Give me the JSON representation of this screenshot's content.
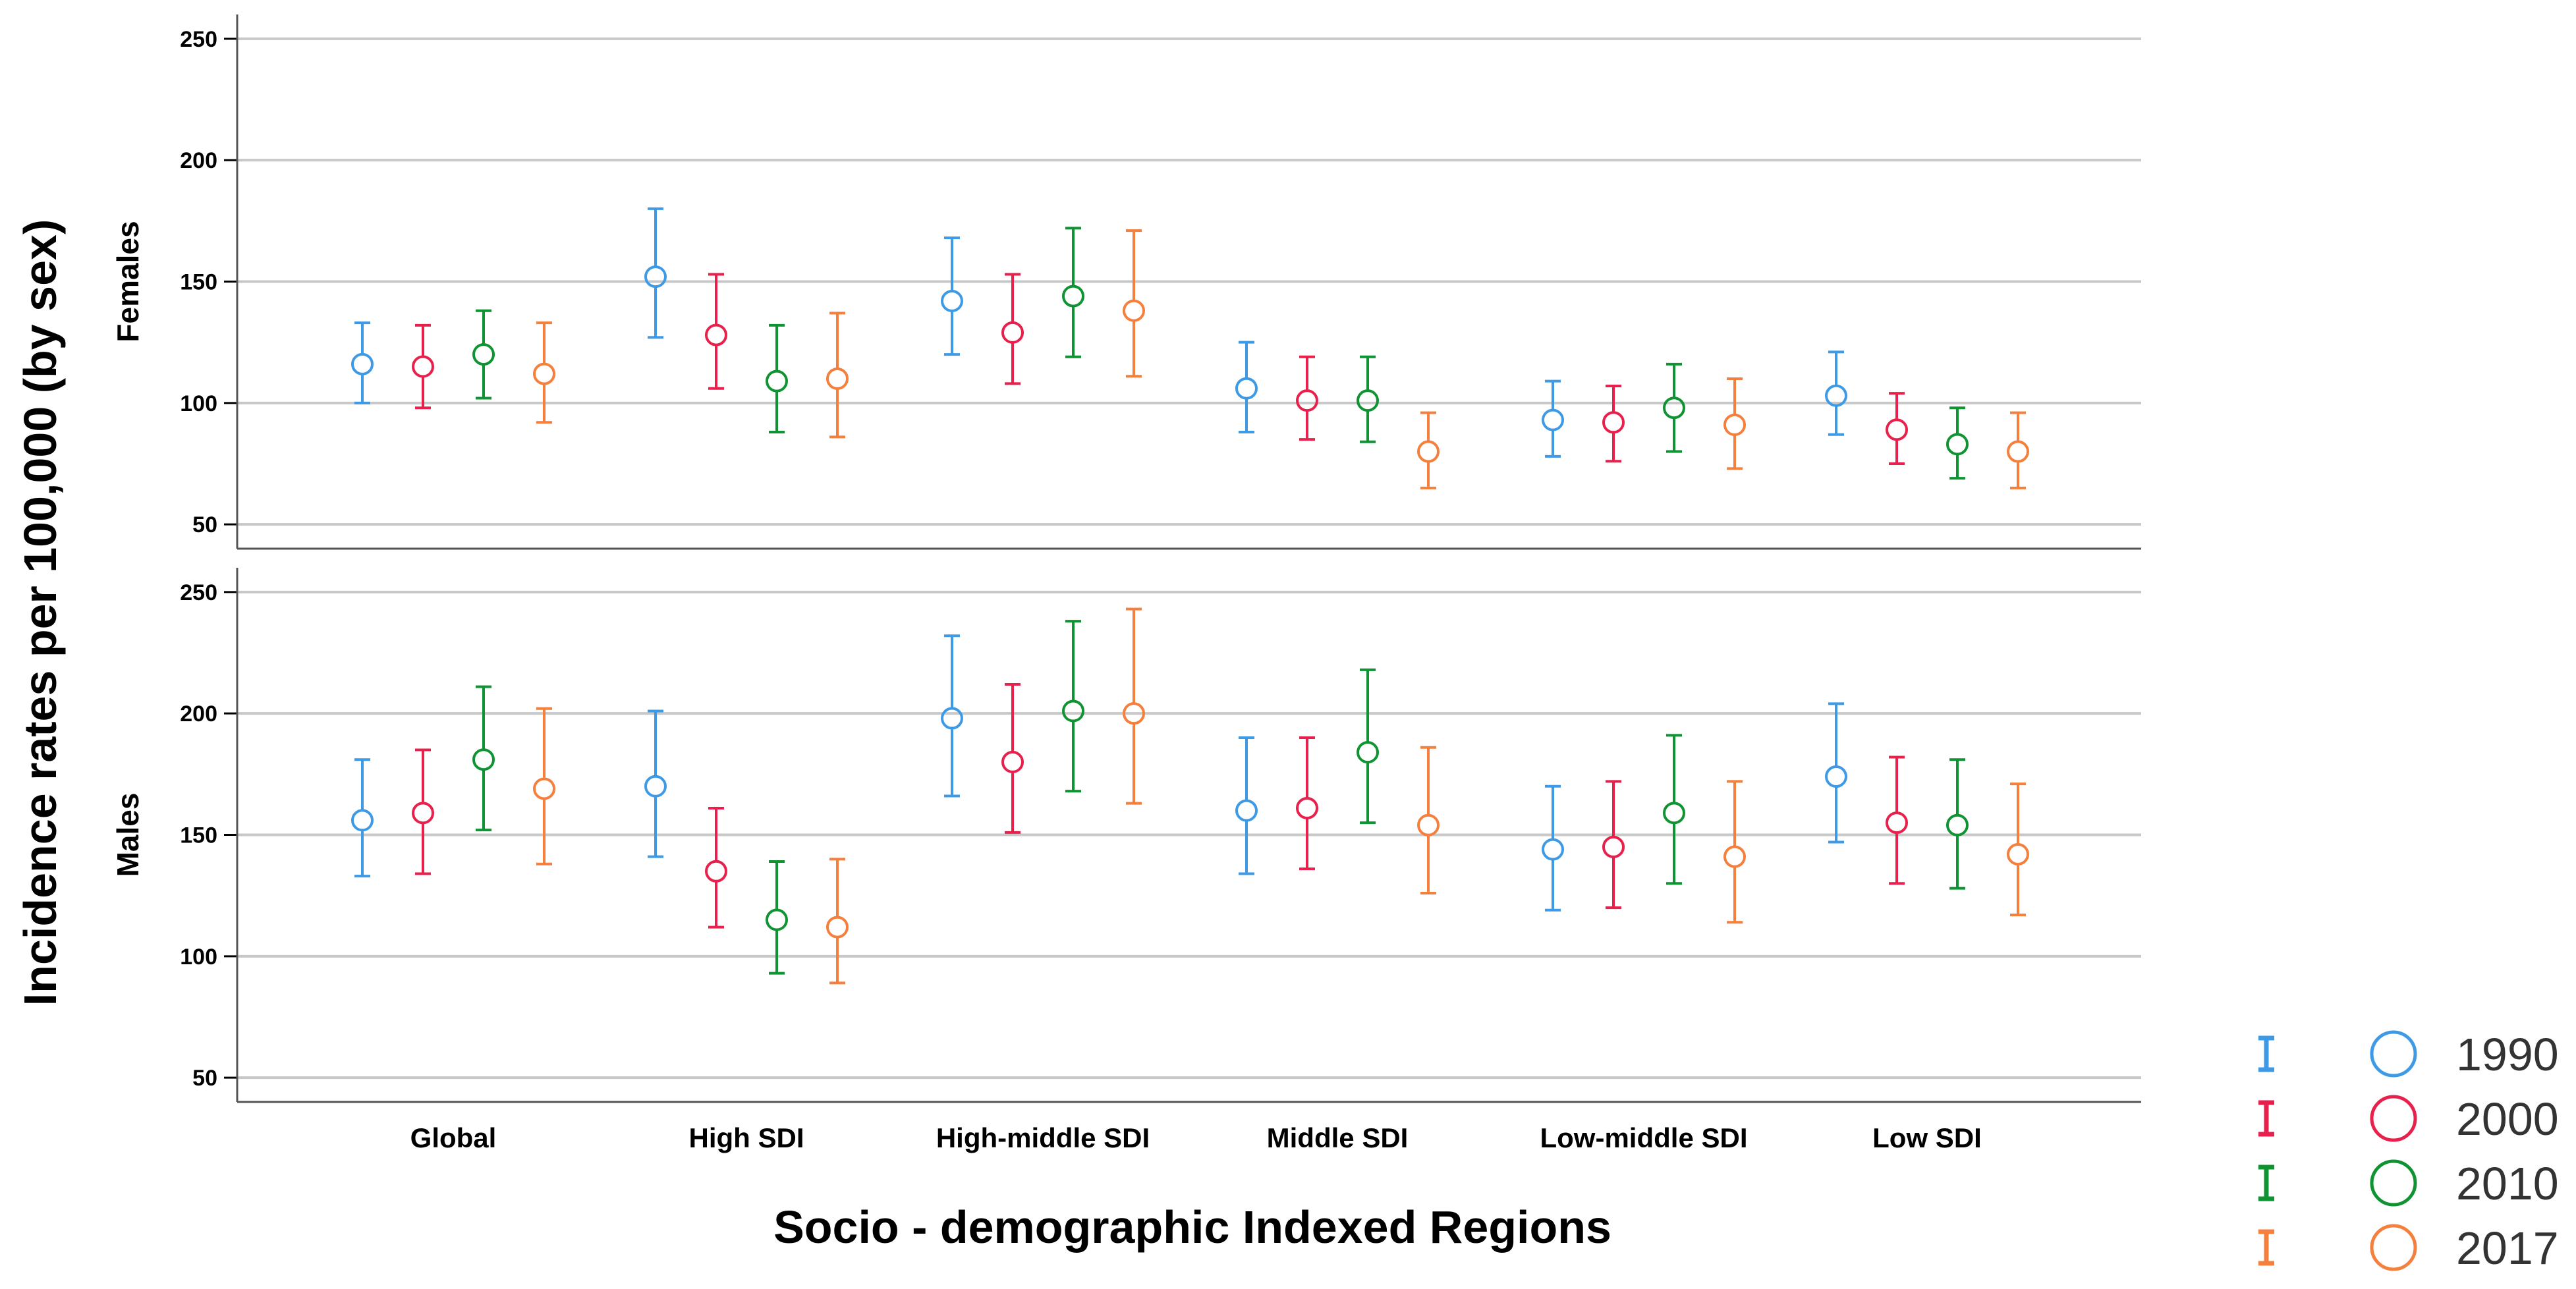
{
  "chart_data": {
    "type": "errorbar",
    "ylabel": "Incidence rates per 100,000 (by sex)",
    "xlabel": "Socio - demographic Indexed  Regions",
    "categories": [
      "Global",
      "High SDI",
      "High-middle SDI",
      "Middle SDI",
      "Low-middle SDI",
      "Low SDI"
    ],
    "legend": {
      "position": "bottom-right",
      "series": [
        {
          "name": "1990",
          "color": "#3e9ae5"
        },
        {
          "name": "2000",
          "color": "#e8204c"
        },
        {
          "name": "2010",
          "color": "#0f9333"
        },
        {
          "name": "2017",
          "color": "#f57f3c"
        }
      ]
    },
    "panels": [
      {
        "label": "Females",
        "ylim": [
          40,
          260
        ],
        "yticks": [
          50,
          100,
          150,
          200,
          250
        ],
        "series": [
          {
            "name": "1990",
            "values": [
              116,
              152,
              142,
              106,
              93,
              103
            ],
            "lower": [
              100,
              127,
              120,
              88,
              78,
              87
            ],
            "upper": [
              133,
              180,
              168,
              125,
              109,
              121
            ]
          },
          {
            "name": "2000",
            "values": [
              115,
              128,
              129,
              101,
              92,
              89
            ],
            "lower": [
              98,
              106,
              108,
              85,
              76,
              75
            ],
            "upper": [
              132,
              153,
              153,
              119,
              107,
              104
            ]
          },
          {
            "name": "2010",
            "values": [
              120,
              109,
              144,
              101,
              98,
              83
            ],
            "lower": [
              102,
              88,
              119,
              84,
              80,
              69
            ],
            "upper": [
              138,
              132,
              172,
              119,
              116,
              98
            ]
          },
          {
            "name": "2017",
            "values": [
              112,
              110,
              138,
              80,
              91,
              80
            ],
            "lower": [
              92,
              86,
              111,
              65,
              73,
              65
            ],
            "upper": [
              133,
              137,
              171,
              96,
              110,
              96
            ]
          }
        ]
      },
      {
        "label": "Males",
        "ylim": [
          40,
          260
        ],
        "yticks": [
          50,
          100,
          150,
          200,
          250
        ],
        "series": [
          {
            "name": "1990",
            "values": [
              156,
              170,
              198,
              160,
              144,
              174
            ],
            "lower": [
              133,
              141,
              166,
              134,
              119,
              147
            ],
            "upper": [
              181,
              201,
              232,
              190,
              170,
              204
            ]
          },
          {
            "name": "2000",
            "values": [
              159,
              135,
              180,
              161,
              145,
              155
            ],
            "lower": [
              134,
              112,
              151,
              136,
              120,
              130
            ],
            "upper": [
              185,
              161,
              212,
              190,
              172,
              182
            ]
          },
          {
            "name": "2010",
            "values": [
              181,
              115,
              201,
              184,
              159,
              154
            ],
            "lower": [
              152,
              93,
              168,
              155,
              130,
              128
            ],
            "upper": [
              211,
              139,
              238,
              218,
              191,
              181
            ]
          },
          {
            "name": "2017",
            "values": [
              169,
              112,
              200,
              154,
              141,
              142
            ],
            "lower": [
              138,
              89,
              163,
              126,
              114,
              117
            ],
            "upper": [
              202,
              140,
              243,
              186,
              172,
              171
            ]
          }
        ]
      }
    ]
  }
}
